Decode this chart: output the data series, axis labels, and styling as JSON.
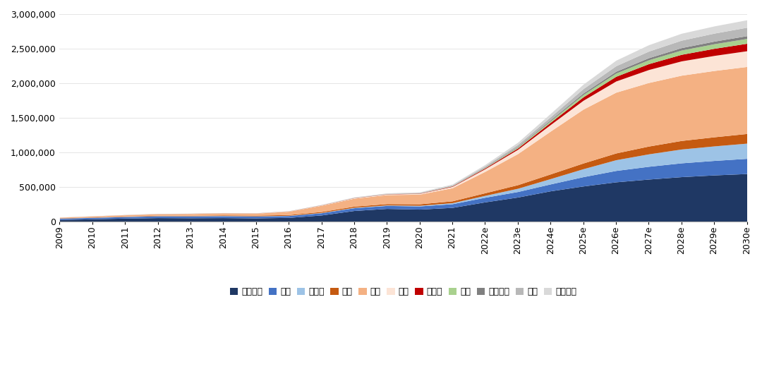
{
  "x_labels": [
    "2009",
    "2010",
    "2011",
    "2012",
    "2013",
    "2014",
    "2015",
    "2016",
    "2017",
    "2018",
    "2019",
    "2020",
    "2021",
    "2022e",
    "2023e",
    "2024e",
    "2025e",
    "2026e",
    "2027e",
    "2028e",
    "2029e",
    "2030e"
  ],
  "series": {
    "澳大利亚": [
      25000,
      35000,
      45000,
      52000,
      50000,
      52000,
      48000,
      55000,
      90000,
      155000,
      185000,
      175000,
      200000,
      280000,
      350000,
      440000,
      510000,
      570000,
      610000,
      645000,
      670000,
      690000
    ],
    "智利": [
      18000,
      20000,
      22000,
      25000,
      26000,
      27000,
      26000,
      27000,
      32000,
      40000,
      43000,
      46000,
      53000,
      67000,
      80000,
      100000,
      135000,
      165000,
      185000,
      200000,
      210000,
      220000
    ],
    "阿根廷": [
      1500,
      2000,
      3000,
      3500,
      3500,
      3500,
      3500,
      3500,
      4500,
      6000,
      7500,
      9000,
      15000,
      27000,
      47000,
      77000,
      115000,
      155000,
      180000,
      200000,
      210000,
      220000
    ],
    "中国": [
      3000,
      4000,
      5000,
      6000,
      7000,
      9000,
      11000,
      11000,
      14000,
      17000,
      19000,
      22000,
      27000,
      38000,
      52000,
      68000,
      83000,
      98000,
      113000,
      124000,
      132000,
      140000
    ],
    "非洲": [
      10000,
      14000,
      18000,
      22000,
      25000,
      28000,
      28000,
      48000,
      90000,
      115000,
      130000,
      140000,
      190000,
      310000,
      450000,
      620000,
      780000,
      880000,
      920000,
      945000,
      960000,
      970000
    ],
    "美国": [
      800,
      1200,
      1500,
      2000,
      2000,
      2500,
      2500,
      3000,
      5000,
      7000,
      9000,
      11000,
      19000,
      38000,
      62000,
      95000,
      128000,
      162000,
      188000,
      207000,
      218000,
      228000
    ],
    "加拿大": [
      300,
      400,
      500,
      600,
      700,
      800,
      800,
      900,
      1500,
      2300,
      3000,
      4000,
      6500,
      12000,
      20000,
      33000,
      50000,
      68000,
      85000,
      95000,
      103000,
      108000
    ],
    "巴西": [
      150,
      200,
      280,
      350,
      420,
      500,
      500,
      580,
      800,
      1100,
      1500,
      1900,
      3200,
      6500,
      12500,
      21000,
      34000,
      47000,
      56000,
      62000,
      66000,
      70000
    ],
    "玻利维亚": [
      80,
      150,
      220,
      300,
      380,
      450,
      450,
      530,
      800,
      1200,
      1600,
      2000,
      3300,
      6600,
      10000,
      15000,
      21000,
      26000,
      30000,
      35000,
      38000,
      40000
    ],
    "欧洲": [
      400,
      480,
      560,
      640,
      720,
      800,
      800,
      960,
      1600,
      2400,
      4000,
      5600,
      9600,
      16000,
      28000,
      44000,
      64000,
      80000,
      96000,
      108000,
      116000,
      122000
    ],
    "全球其他": [
      400,
      480,
      560,
      640,
      720,
      800,
      800,
      1200,
      2400,
      4000,
      6400,
      8000,
      12000,
      20000,
      32000,
      48000,
      64000,
      80000,
      92000,
      100000,
      104000,
      108000
    ]
  },
  "colors": {
    "澳大利亚": "#1f3864",
    "智利": "#4472c4",
    "阿根廷": "#9dc3e6",
    "中国": "#c55a11",
    "非洲": "#f4b183",
    "美国": "#fce4d6",
    "加拿大": "#c00000",
    "巴西": "#a9d18e",
    "玻利维亚": "#808080",
    "欧洲": "#b8b8b8",
    "全球其他": "#d9d9d9"
  },
  "ylim": [
    0,
    3000000
  ],
  "yticks": [
    0,
    500000,
    1000000,
    1500000,
    2000000,
    2500000,
    3000000
  ],
  "background_color": "#ffffff",
  "legend_order": [
    "澳大利亚",
    "智利",
    "阿根廷",
    "中国",
    "非洲",
    "美国",
    "加拿大",
    "巴西",
    "玻利维亚",
    "欧洲",
    "全球其他"
  ]
}
